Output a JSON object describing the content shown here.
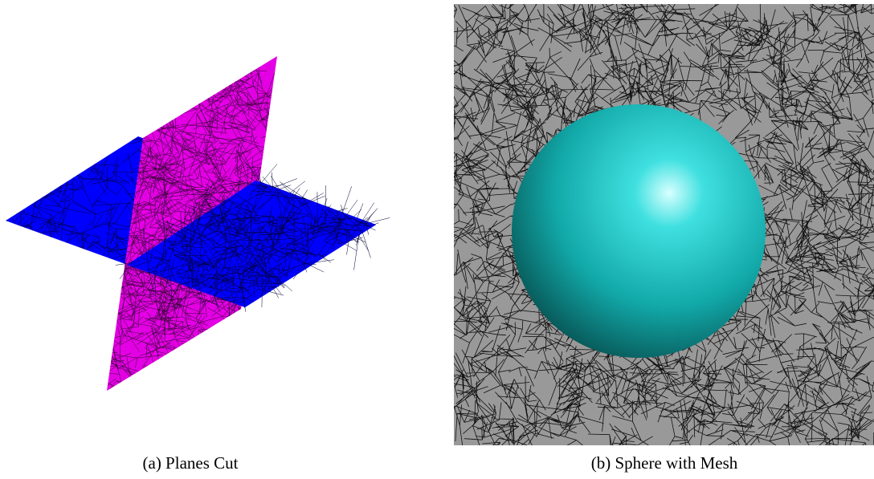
{
  "figures": [
    {
      "caption": "(a) Planes Cut"
    },
    {
      "caption": "(b) Sphere with Mesh"
    }
  ]
}
